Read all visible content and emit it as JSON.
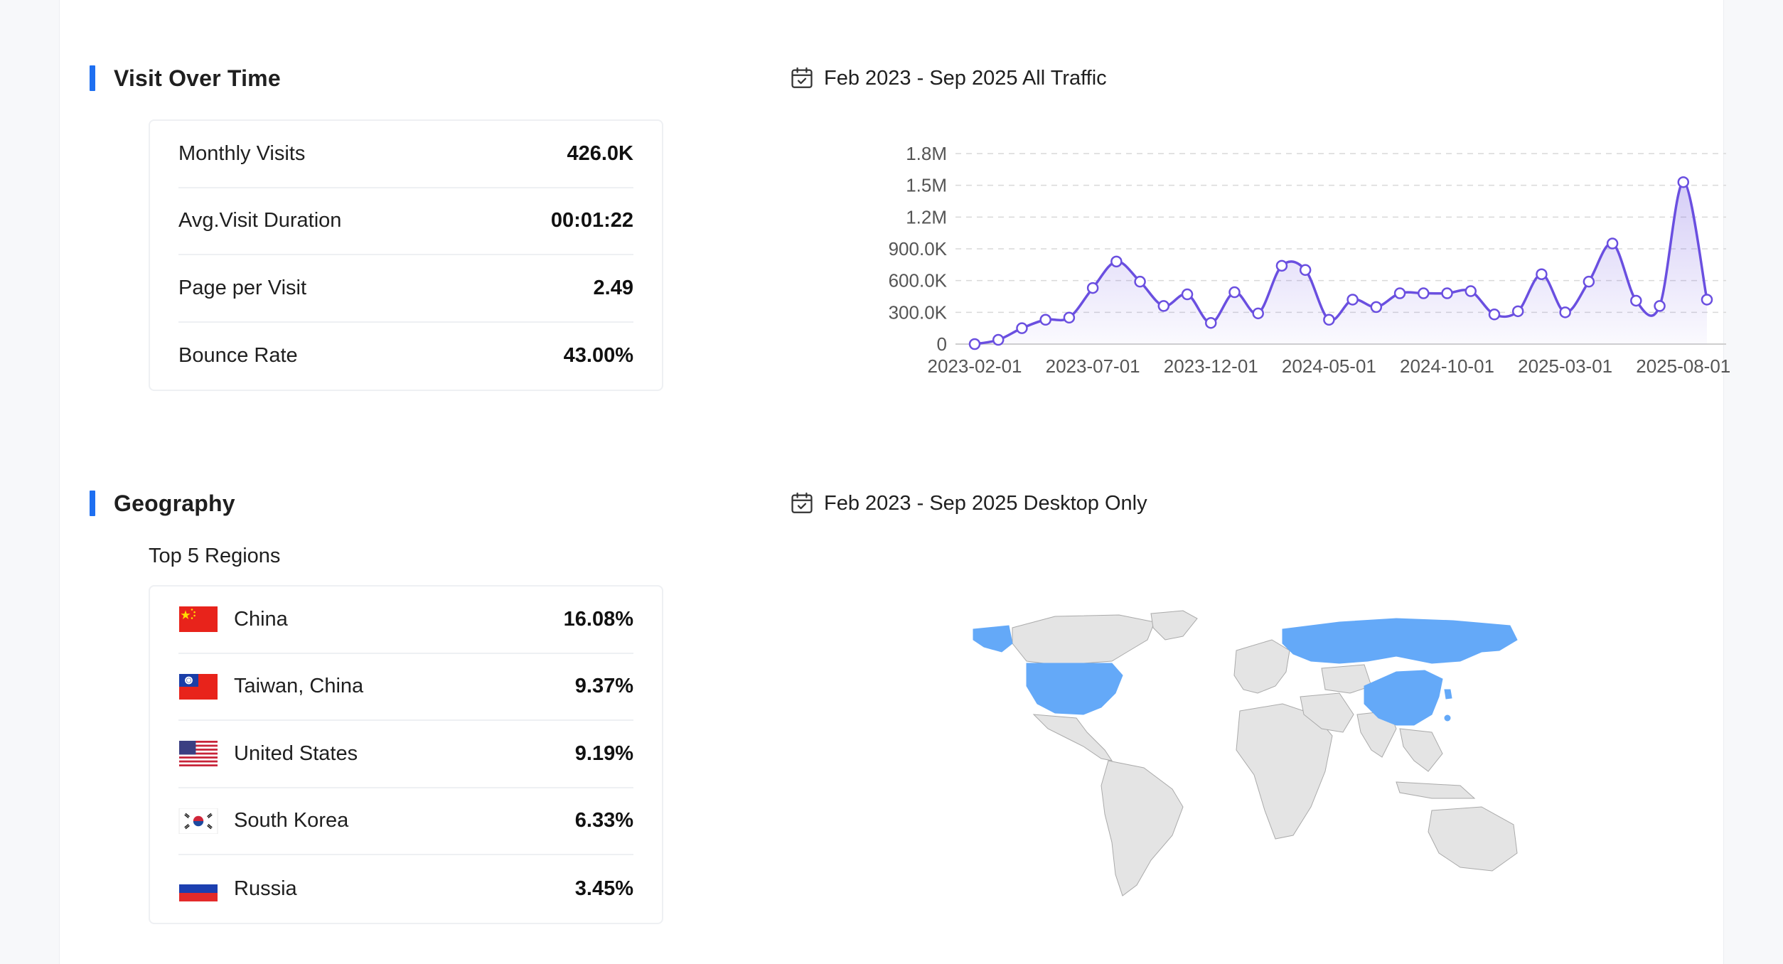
{
  "visit_section": {
    "title": "Visit Over Time",
    "date_range": "Feb 2023 - Sep 2025 All Traffic",
    "metrics": [
      {
        "label": "Monthly Visits",
        "value": "426.0K"
      },
      {
        "label": "Avg.Visit Duration",
        "value": "00:01:22"
      },
      {
        "label": "Page per Visit",
        "value": "2.49"
      },
      {
        "label": "Bounce Rate",
        "value": "43.00%"
      }
    ]
  },
  "geography_section": {
    "title": "Geography",
    "date_range": "Feb 2023 - Sep 2025 Desktop Only",
    "subtitle": "Top 5 Regions",
    "regions": [
      {
        "name": "China",
        "value": "16.08%",
        "flag_icon": "china-flag-icon"
      },
      {
        "name": "Taiwan, China",
        "value": "9.37%",
        "flag_icon": "taiwan-flag-icon"
      },
      {
        "name": "United States",
        "value": "9.19%",
        "flag_icon": "us-flag-icon"
      },
      {
        "name": "South Korea",
        "value": "6.33%",
        "flag_icon": "south-korea-flag-icon"
      },
      {
        "name": "Russia",
        "value": "3.45%",
        "flag_icon": "russia-flag-icon"
      }
    ],
    "map_highlight_color": "#64a9f8",
    "map_base_color": "#e4e4e4"
  },
  "colors": {
    "accent": "#1e6ff1",
    "line": "#6a4fe0"
  },
  "chart_data": {
    "type": "area",
    "x": [
      "2023-02-01",
      "2023-03-01",
      "2023-04-01",
      "2023-05-01",
      "2023-06-01",
      "2023-07-01",
      "2023-08-01",
      "2023-09-01",
      "2023-10-01",
      "2023-11-01",
      "2023-12-01",
      "2024-01-01",
      "2024-02-01",
      "2024-03-01",
      "2024-04-01",
      "2024-05-01",
      "2024-06-01",
      "2024-07-01",
      "2024-08-01",
      "2024-09-01",
      "2024-10-01",
      "2024-11-01",
      "2024-12-01",
      "2025-01-01",
      "2025-02-01",
      "2025-03-01",
      "2025-04-01",
      "2025-05-01",
      "2025-06-01",
      "2025-07-01",
      "2025-08-01",
      "2025-09-01"
    ],
    "x_tick_labels": [
      "2023-02-01",
      "2023-07-01",
      "2023-12-01",
      "2024-05-01",
      "2024-10-01",
      "2025-03-01",
      "2025-08-01"
    ],
    "series": [
      {
        "values": [
          0,
          40000,
          150000,
          230000,
          250000,
          530000,
          780000,
          590000,
          360000,
          470000,
          200000,
          490000,
          290000,
          740000,
          700000,
          230000,
          420000,
          350000,
          480000,
          480000,
          480000,
          500000,
          280000,
          310000,
          660000,
          300000,
          590000,
          950000,
          410000,
          360000,
          1530000,
          420000
        ]
      }
    ],
    "y_tick_labels": [
      "0",
      "300.0K",
      "600.0K",
      "900.0K",
      "1.2M",
      "1.5M",
      "1.8M"
    ],
    "ylim": [
      0,
      1800000
    ],
    "grid": true
  }
}
